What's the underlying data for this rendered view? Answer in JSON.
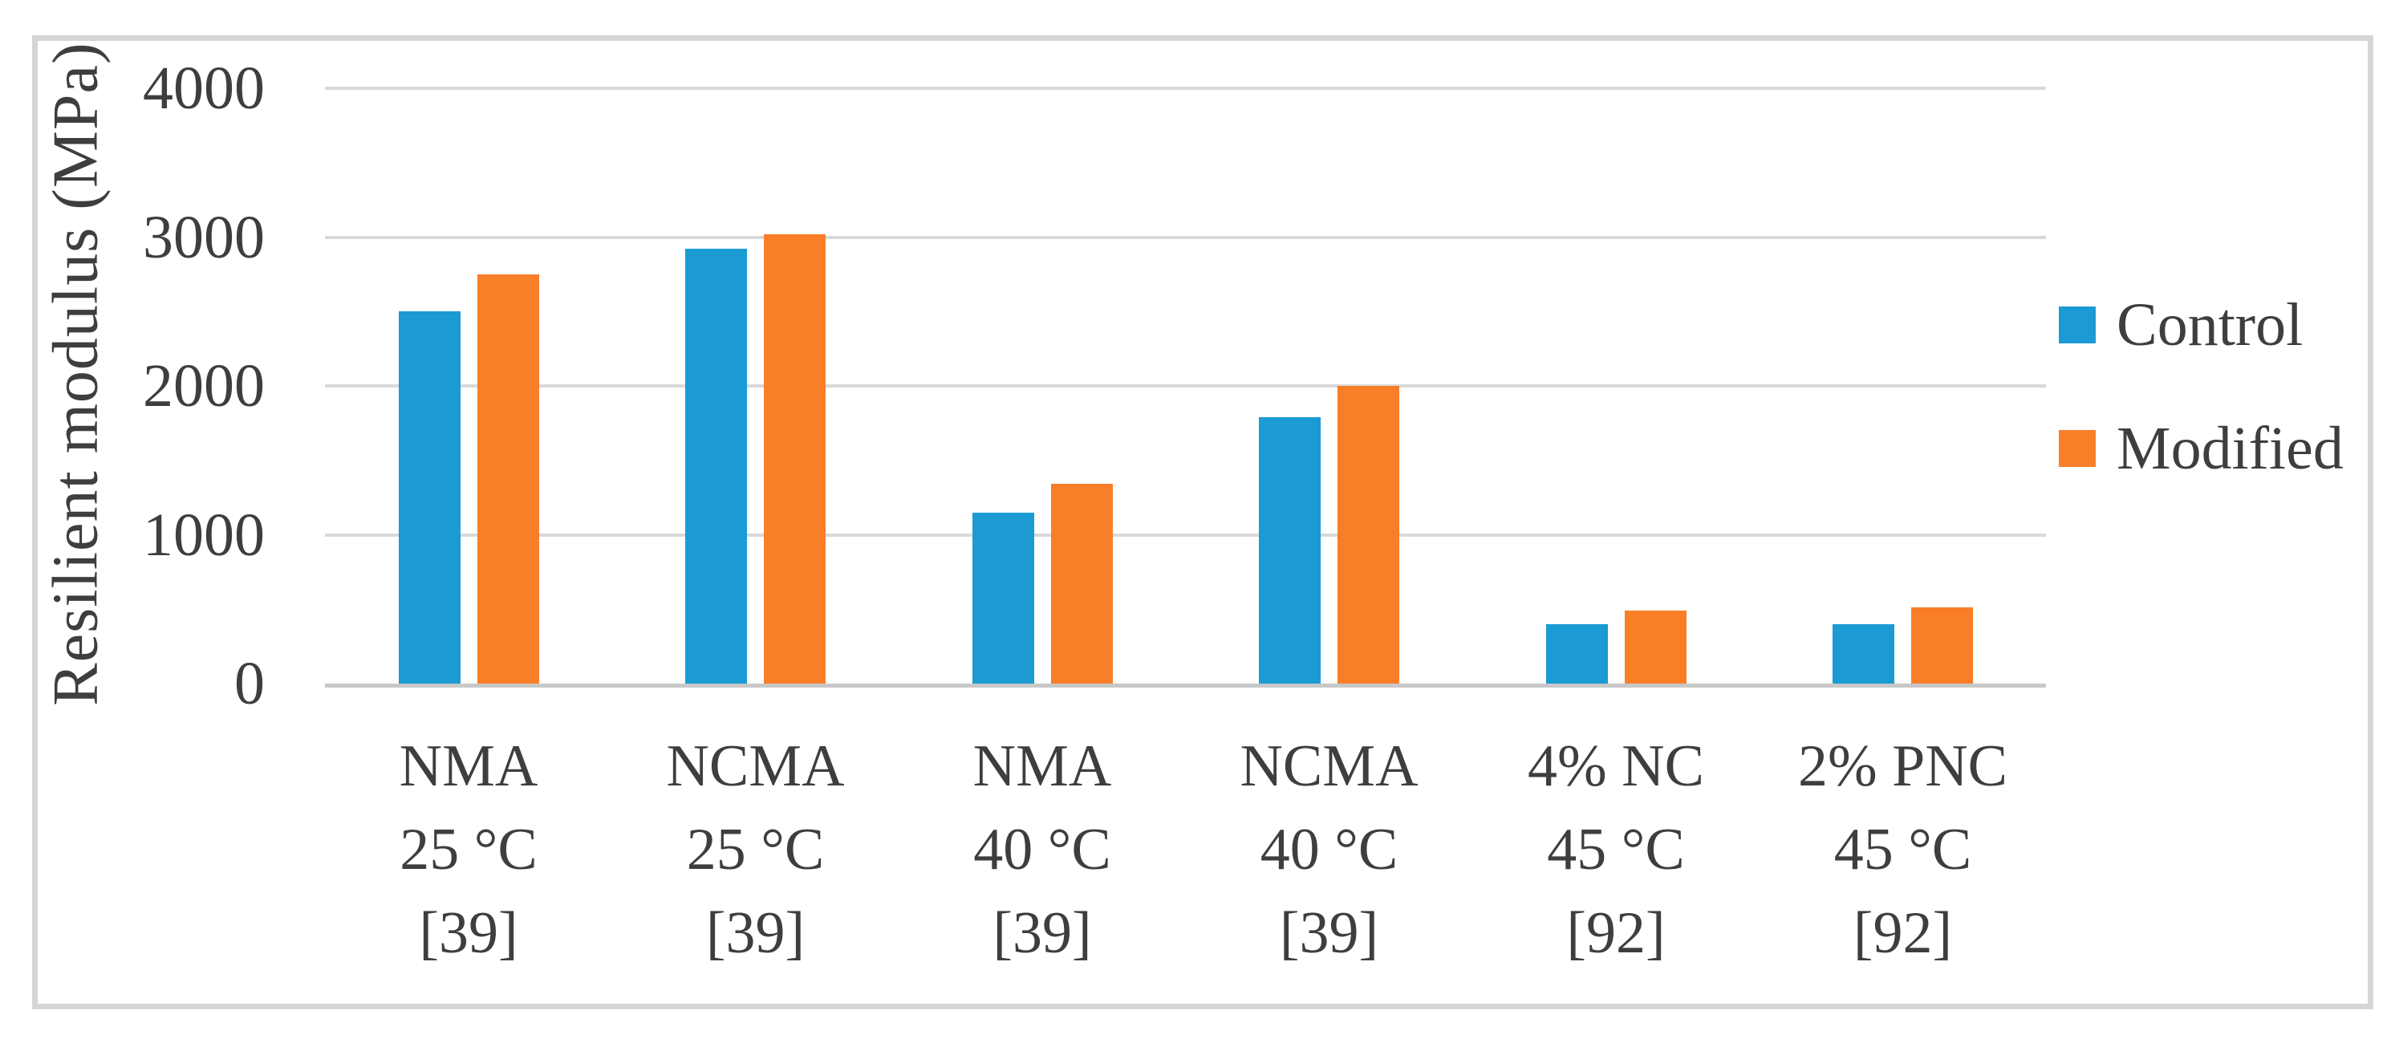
{
  "figure": {
    "background": "#ffffff",
    "border_color": "#d6d6d6",
    "text_color": "#3e3e3e",
    "gridline_color": "#d9d9d9",
    "axis_line_color": "#c8c8c8"
  },
  "chart_data": {
    "type": "bar",
    "title": "",
    "xlabel": "",
    "ylabel": "Resilient modulus (MPa)",
    "ylim": [
      0,
      4000
    ],
    "ytick_interval": 1000,
    "yticks": [
      "0",
      "1000",
      "2000",
      "3000",
      "4000"
    ],
    "grid": true,
    "legend_position": "right-middle",
    "categories": [
      {
        "lines": [
          "NMA",
          "25 °C",
          "[39]"
        ]
      },
      {
        "lines": [
          "NCMA",
          "25 °C",
          "[39]"
        ]
      },
      {
        "lines": [
          "NMA",
          "40 °C",
          "[39]"
        ]
      },
      {
        "lines": [
          "NCMA",
          "40 °C",
          "[39]"
        ]
      },
      {
        "lines": [
          "4% NC",
          "45 °C",
          "[92]"
        ]
      },
      {
        "lines": [
          "2% PNC",
          "45 °C",
          "[92]"
        ]
      }
    ],
    "series": [
      {
        "name": "Control",
        "color": "#1b9ad4",
        "values": [
          2500,
          2920,
          1150,
          1790,
          400,
          400
        ]
      },
      {
        "name": "Modified",
        "color": "#f97e28",
        "values": [
          2750,
          3020,
          1340,
          2000,
          490,
          510
        ]
      }
    ]
  }
}
